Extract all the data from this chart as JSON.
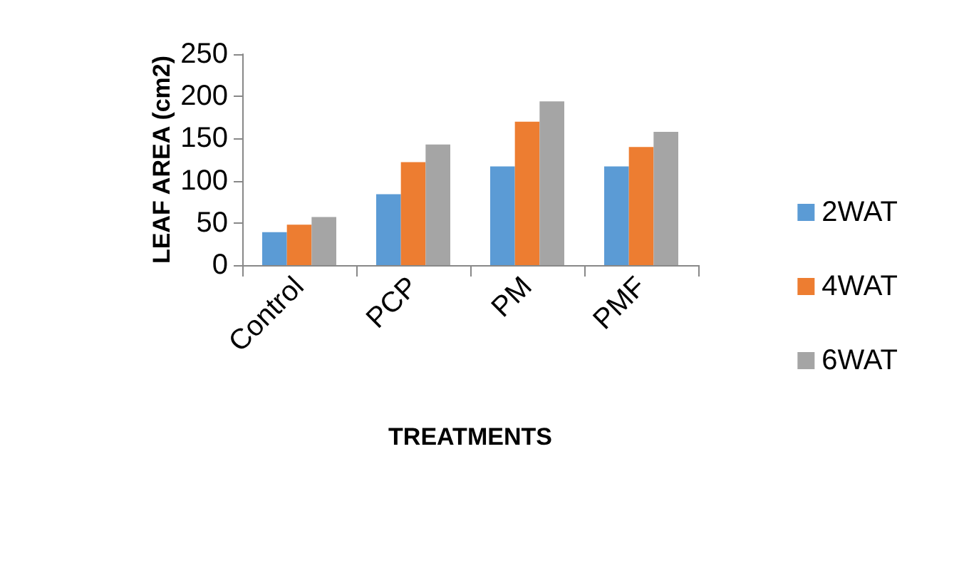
{
  "chart_data": {
    "type": "bar",
    "xlabel": "TREATMENTS",
    "ylabel": "LEAF AREA (cm2)",
    "categories": [
      "Control",
      "PCP",
      "PM",
      "PMF"
    ],
    "series": [
      {
        "name": "2WAT",
        "color": "#5b9bd5",
        "values": [
          39,
          84,
          117,
          117
        ]
      },
      {
        "name": "4WAT",
        "color": "#ed7d31",
        "values": [
          48,
          122,
          170,
          140
        ]
      },
      {
        "name": "6WAT",
        "color": "#a5a5a5",
        "values": [
          57,
          143,
          194,
          158
        ]
      }
    ],
    "ylim": [
      0,
      250
    ],
    "yticks": [
      0,
      50,
      100,
      150,
      200,
      250
    ],
    "grid": false,
    "legend": "right"
  }
}
